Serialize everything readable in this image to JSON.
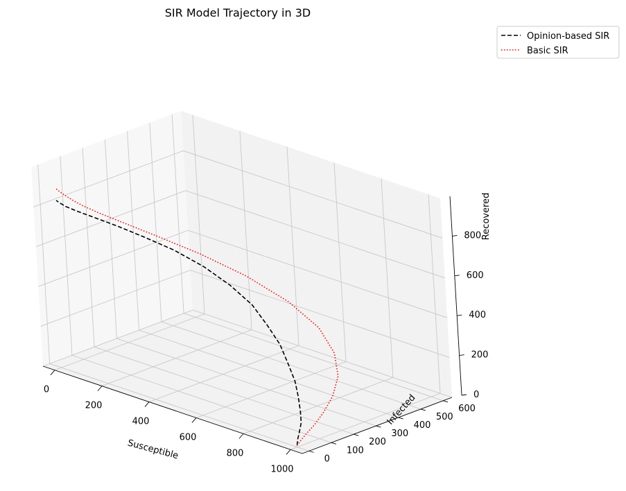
{
  "chart_data": {
    "type": "line",
    "projection": "3d",
    "title": "SIR Model Trajectory in 3D",
    "xlabel": "Susceptible",
    "ylabel": "Infected",
    "zlabel": "Recovered",
    "xlim": [
      -50,
      1050
    ],
    "ylim": [
      -30,
      640
    ],
    "zlim": [
      0,
      1000
    ],
    "xticks": [
      0,
      200,
      400,
      600,
      800,
      1000
    ],
    "yticks": [
      0,
      100,
      200,
      300,
      400,
      500,
      600
    ],
    "zticks": [
      0,
      200,
      400,
      600,
      800
    ],
    "grid": true,
    "legend_position": "upper right, outside plot",
    "series": [
      {
        "name": "Opinion-based SIR",
        "color": "#000000",
        "linestyle": "dashed",
        "x": [
          990,
          960,
          930,
          900,
          860,
          810,
          760,
          700,
          640,
          570,
          500,
          420,
          340,
          260,
          190,
          130,
          80,
          45,
          25,
          15,
          10
        ],
        "y": [
          10,
          45,
          85,
          125,
          165,
          210,
          250,
          285,
          315,
          335,
          345,
          335,
          305,
          260,
          205,
          150,
          100,
          60,
          35,
          20,
          10
        ],
        "z": [
          0,
          5,
          15,
          30,
          55,
          90,
          130,
          180,
          240,
          300,
          370,
          440,
          515,
          585,
          645,
          700,
          745,
          780,
          805,
          825,
          840
        ]
      },
      {
        "name": "Basic SIR",
        "color": "#ff0000",
        "linestyle": "dotted",
        "x": [
          990,
          975,
          955,
          930,
          895,
          850,
          790,
          710,
          610,
          490,
          360,
          240,
          150,
          90,
          55,
          35,
          25,
          18,
          14,
          12,
          10
        ],
        "y": [
          10,
          40,
          85,
          150,
          230,
          320,
          410,
          480,
          520,
          515,
          470,
          395,
          305,
          220,
          150,
          100,
          65,
          42,
          27,
          17,
          10
        ],
        "z": [
          0,
          3,
          8,
          18,
          35,
          60,
          100,
          155,
          225,
          310,
          405,
          500,
          590,
          670,
          735,
          785,
          825,
          855,
          875,
          890,
          900
        ]
      }
    ]
  }
}
